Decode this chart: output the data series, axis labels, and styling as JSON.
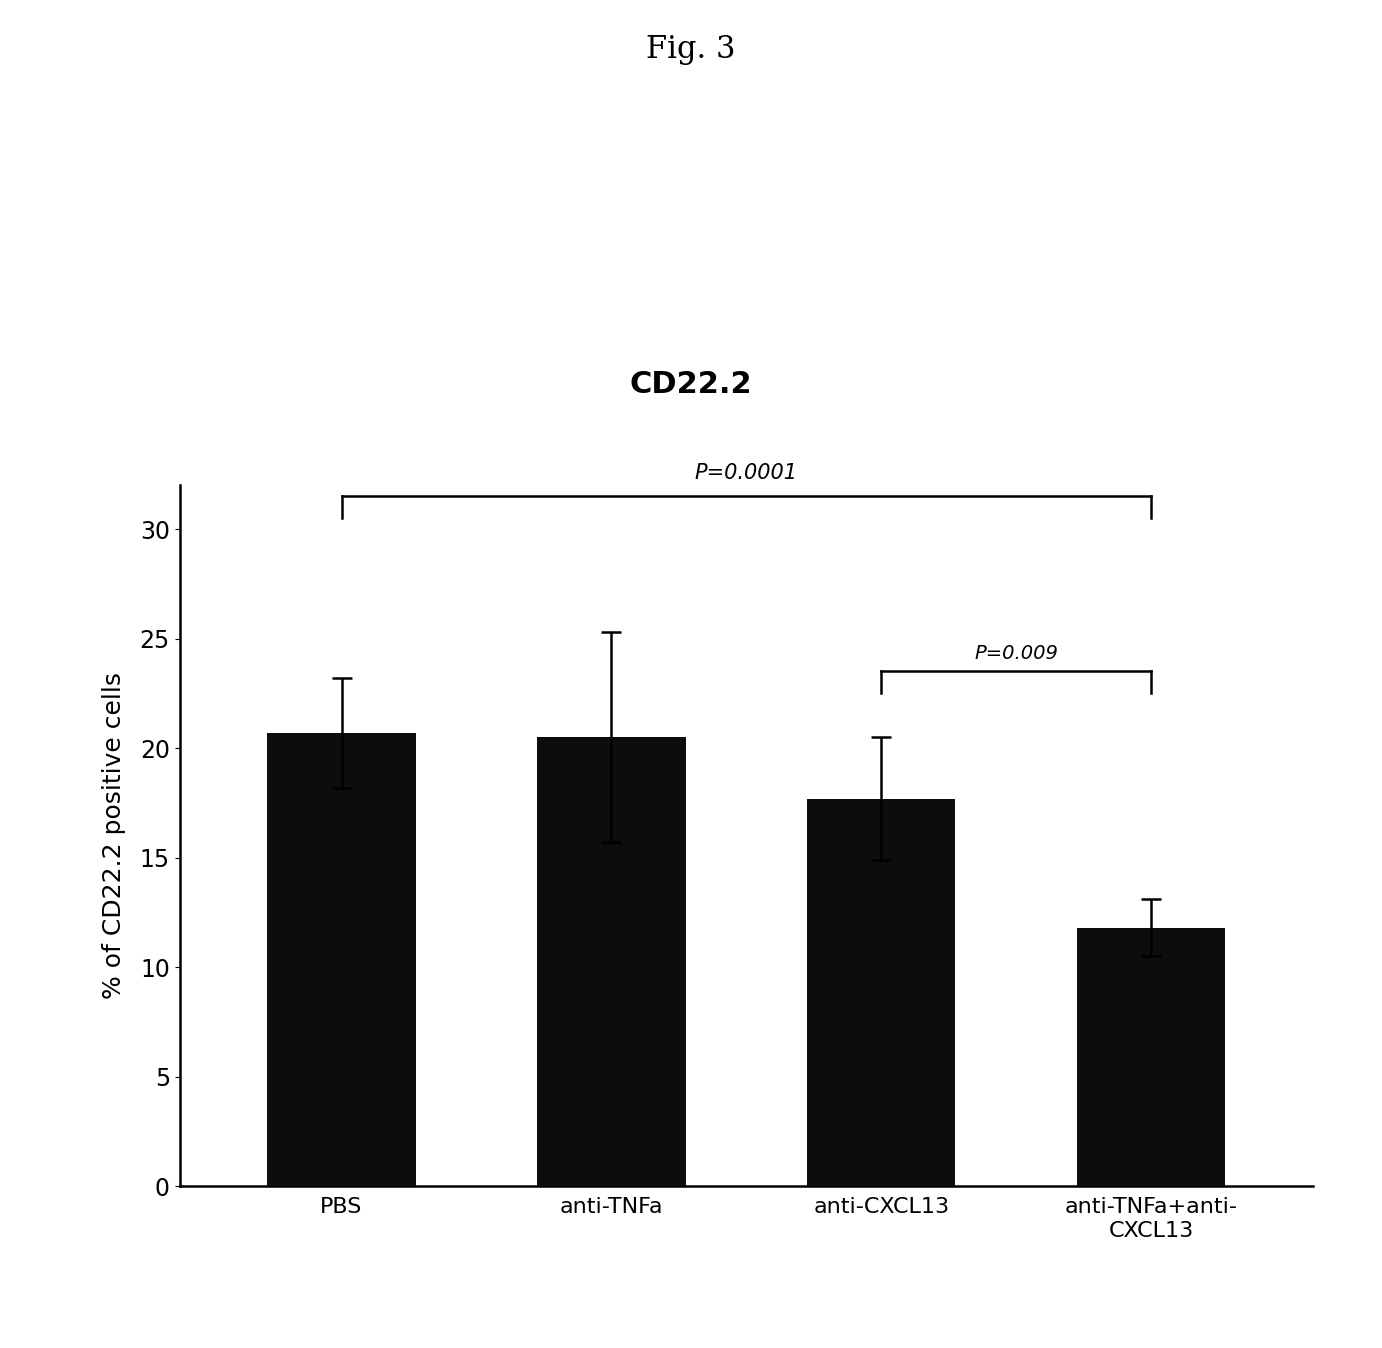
{
  "categories": [
    "PBS",
    "anti-TNFa",
    "anti-CXCL13",
    "anti-TNFa+anti-\nCXCL13"
  ],
  "values": [
    20.7,
    20.5,
    17.7,
    11.8
  ],
  "errors": [
    2.5,
    4.8,
    2.8,
    1.3
  ],
  "bar_color": "#0d0d0d",
  "bar_width": 0.55,
  "ylim": [
    0,
    32
  ],
  "yticks": [
    0,
    5,
    10,
    15,
    20,
    25,
    30
  ],
  "ylabel": "% of CD22.2 positive cells",
  "chart_title": "CD22.2",
  "fig_label": "Fig. 3",
  "title_fontsize": 22,
  "fig_label_fontsize": 22,
  "ylabel_fontsize": 18,
  "tick_fontsize": 17,
  "xlabel_fontsize": 16,
  "sig1_label": "P=0.0001",
  "sig2_label": "P=0.009",
  "background_color": "#ffffff"
}
